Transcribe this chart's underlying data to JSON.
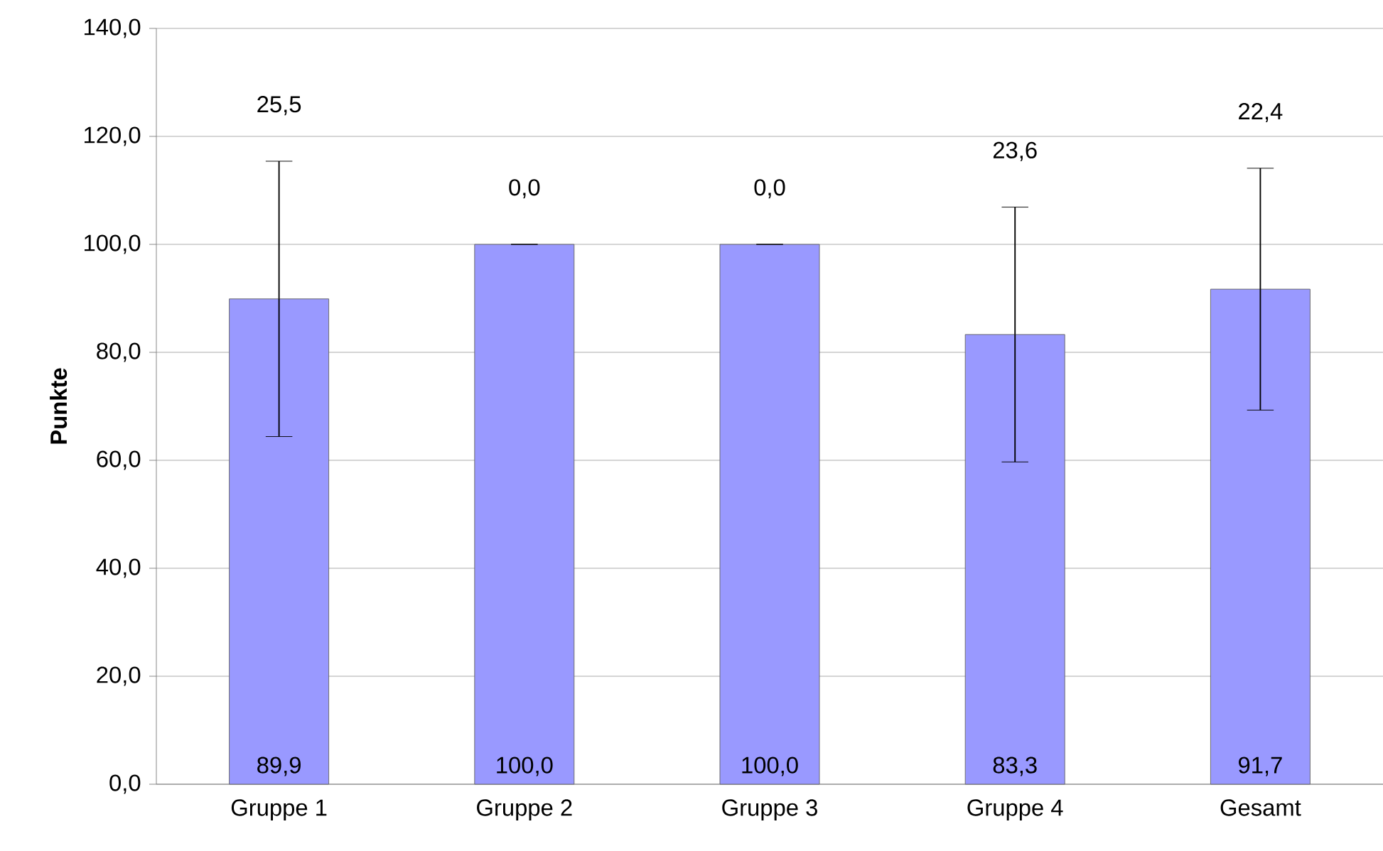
{
  "chart_data": {
    "type": "bar",
    "ylabel": "Punkte",
    "categories": [
      "Gruppe 1",
      "Gruppe 2",
      "Gruppe 3",
      "Gruppe 4",
      "Gesamt"
    ],
    "values": [
      89.9,
      100.0,
      100.0,
      83.3,
      91.7
    ],
    "errors": [
      25.5,
      0.0,
      0.0,
      23.6,
      22.4
    ],
    "value_labels": [
      "89,9",
      "100,0",
      "100,0",
      "83,3",
      "91,7"
    ],
    "color": "#9999ff",
    "ylim": [
      0,
      140
    ],
    "yticks": [
      {
        "value": 0,
        "label": "0,0"
      },
      {
        "value": 20,
        "label": "20,0"
      },
      {
        "value": 40,
        "label": "40,0"
      },
      {
        "value": 60,
        "label": "60,0"
      },
      {
        "value": 80,
        "label": "80,0"
      },
      {
        "value": 100,
        "label": "100,0"
      },
      {
        "value": 120,
        "label": "120,0"
      },
      {
        "value": 140,
        "label": "140,0"
      }
    ],
    "grid": "y",
    "annotations": [
      {
        "text": "25,5",
        "x": "Gruppe 1",
        "y": 115.4
      },
      {
        "text": "0,0",
        "x": "Gruppe 2",
        "y": 100.0
      },
      {
        "text": "0,0",
        "x": "Gruppe 3",
        "y": 100.0
      },
      {
        "text": "23,6",
        "x": "Gruppe 4",
        "y": 106.9
      },
      {
        "text": "22,4",
        "x": "Gesamt",
        "y": 114.1
      }
    ]
  }
}
